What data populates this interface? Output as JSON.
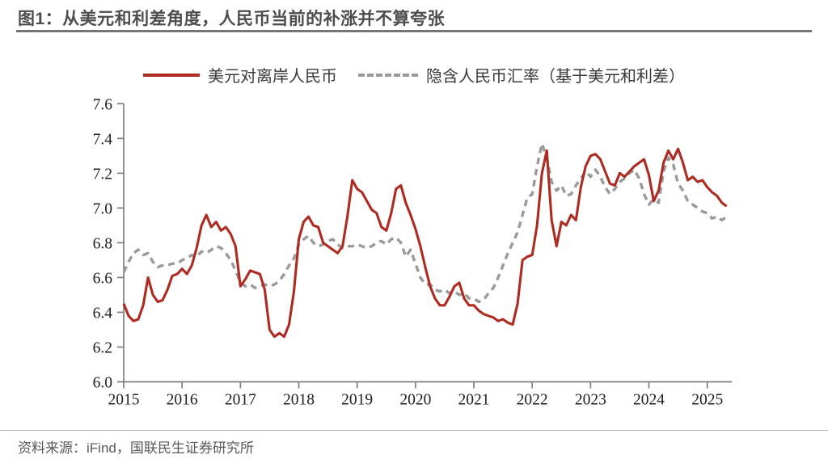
{
  "header": {
    "title": "图1：从美元和利差角度，人民币当前的补涨并不算夸张"
  },
  "legend": [
    {
      "label": "美元对离岸人民币",
      "style": "solid",
      "color": "#ad2b20"
    },
    {
      "label": "隐含人民币汇率（基于美元和利差）",
      "style": "dashed",
      "color": "#9a9a9a"
    }
  ],
  "footer": {
    "source": "资料来源：iFind，国联民生证券研究所"
  },
  "colors": {
    "accent_red": "#ad2b20",
    "line_gray": "#9a9a9a",
    "axis_gray": "#7f7f7f",
    "title_gray": "#4d4d4d",
    "source_gray": "#595959"
  },
  "chart_data": {
    "type": "line",
    "title": "",
    "xlabel": "",
    "ylabel": "",
    "grid": false,
    "legend_position": "top",
    "ylim": [
      6.0,
      7.6
    ],
    "xlim": [
      2015,
      2025.42
    ],
    "y_ticks": [
      6.0,
      6.2,
      6.4,
      6.6,
      6.8,
      7.0,
      7.2,
      7.4,
      7.6
    ],
    "x_ticks": [
      2015,
      2016,
      2017,
      2018,
      2019,
      2020,
      2021,
      2022,
      2023,
      2024,
      2025
    ],
    "x_start": 2015.0,
    "x_step": 0.0833333,
    "series": [
      {
        "name": "美元对离岸人民币",
        "color": "#ad2b20",
        "style": "solid",
        "values": [
          6.45,
          6.38,
          6.35,
          6.36,
          6.44,
          6.6,
          6.5,
          6.46,
          6.47,
          6.53,
          6.61,
          6.62,
          6.65,
          6.62,
          6.67,
          6.77,
          6.9,
          6.96,
          6.89,
          6.92,
          6.87,
          6.89,
          6.85,
          6.78,
          6.55,
          6.59,
          6.64,
          6.63,
          6.62,
          6.53,
          6.3,
          6.26,
          6.28,
          6.26,
          6.33,
          6.52,
          6.82,
          6.92,
          6.95,
          6.9,
          6.89,
          6.8,
          6.78,
          6.76,
          6.74,
          6.78,
          6.95,
          7.16,
          7.11,
          7.09,
          7.04,
          6.99,
          6.97,
          6.89,
          6.87,
          6.97,
          7.11,
          7.13,
          7.03,
          6.96,
          6.88,
          6.78,
          6.66,
          6.55,
          6.48,
          6.44,
          6.44,
          6.49,
          6.55,
          6.57,
          6.48,
          6.44,
          6.44,
          6.41,
          6.39,
          6.38,
          6.37,
          6.35,
          6.36,
          6.34,
          6.33,
          6.45,
          6.7,
          6.72,
          6.73,
          6.9,
          7.2,
          7.33,
          6.93,
          6.78,
          6.92,
          6.9,
          6.96,
          6.93,
          7.12,
          7.24,
          7.3,
          7.31,
          7.28,
          7.21,
          7.14,
          7.13,
          7.2,
          7.18,
          7.21,
          7.24,
          7.26,
          7.28,
          7.19,
          7.04,
          7.1,
          7.26,
          7.33,
          7.28,
          7.34,
          7.26,
          7.16,
          7.18,
          7.15,
          7.16,
          7.12,
          7.09,
          7.07,
          7.03,
          7.01
        ]
      },
      {
        "name": "隐含人民币汇率（基于美元和利差）",
        "color": "#9a9a9a",
        "style": "dashed",
        "values": [
          6.63,
          6.69,
          6.74,
          6.76,
          6.73,
          6.74,
          6.69,
          6.66,
          6.67,
          6.67,
          6.68,
          6.68,
          6.7,
          6.71,
          6.73,
          6.72,
          6.75,
          6.74,
          6.76,
          6.78,
          6.77,
          6.74,
          6.7,
          6.64,
          6.57,
          6.55,
          6.56,
          6.54,
          6.55,
          6.56,
          6.55,
          6.56,
          6.58,
          6.62,
          6.67,
          6.71,
          6.79,
          6.82,
          6.84,
          6.8,
          6.78,
          6.79,
          6.81,
          6.82,
          6.79,
          6.77,
          6.78,
          6.78,
          6.79,
          6.78,
          6.77,
          6.78,
          6.8,
          6.81,
          6.79,
          6.82,
          6.83,
          6.8,
          6.72,
          6.76,
          6.68,
          6.6,
          6.56,
          6.56,
          6.53,
          6.52,
          6.53,
          6.51,
          6.52,
          6.5,
          6.51,
          6.48,
          6.48,
          6.46,
          6.47,
          6.51,
          6.54,
          6.6,
          6.67,
          6.74,
          6.8,
          6.86,
          6.96,
          7.06,
          7.08,
          7.24,
          7.37,
          7.29,
          7.15,
          7.1,
          7.13,
          7.07,
          7.08,
          7.13,
          7.17,
          7.21,
          7.18,
          7.22,
          7.18,
          7.12,
          7.08,
          7.11,
          7.15,
          7.17,
          7.2,
          7.22,
          7.17,
          7.08,
          7.02,
          7.05,
          7.03,
          7.21,
          7.29,
          7.25,
          7.14,
          7.1,
          7.04,
          7.02,
          7.0,
          6.98,
          6.97,
          6.94,
          6.95,
          6.93,
          6.95
        ]
      }
    ]
  }
}
